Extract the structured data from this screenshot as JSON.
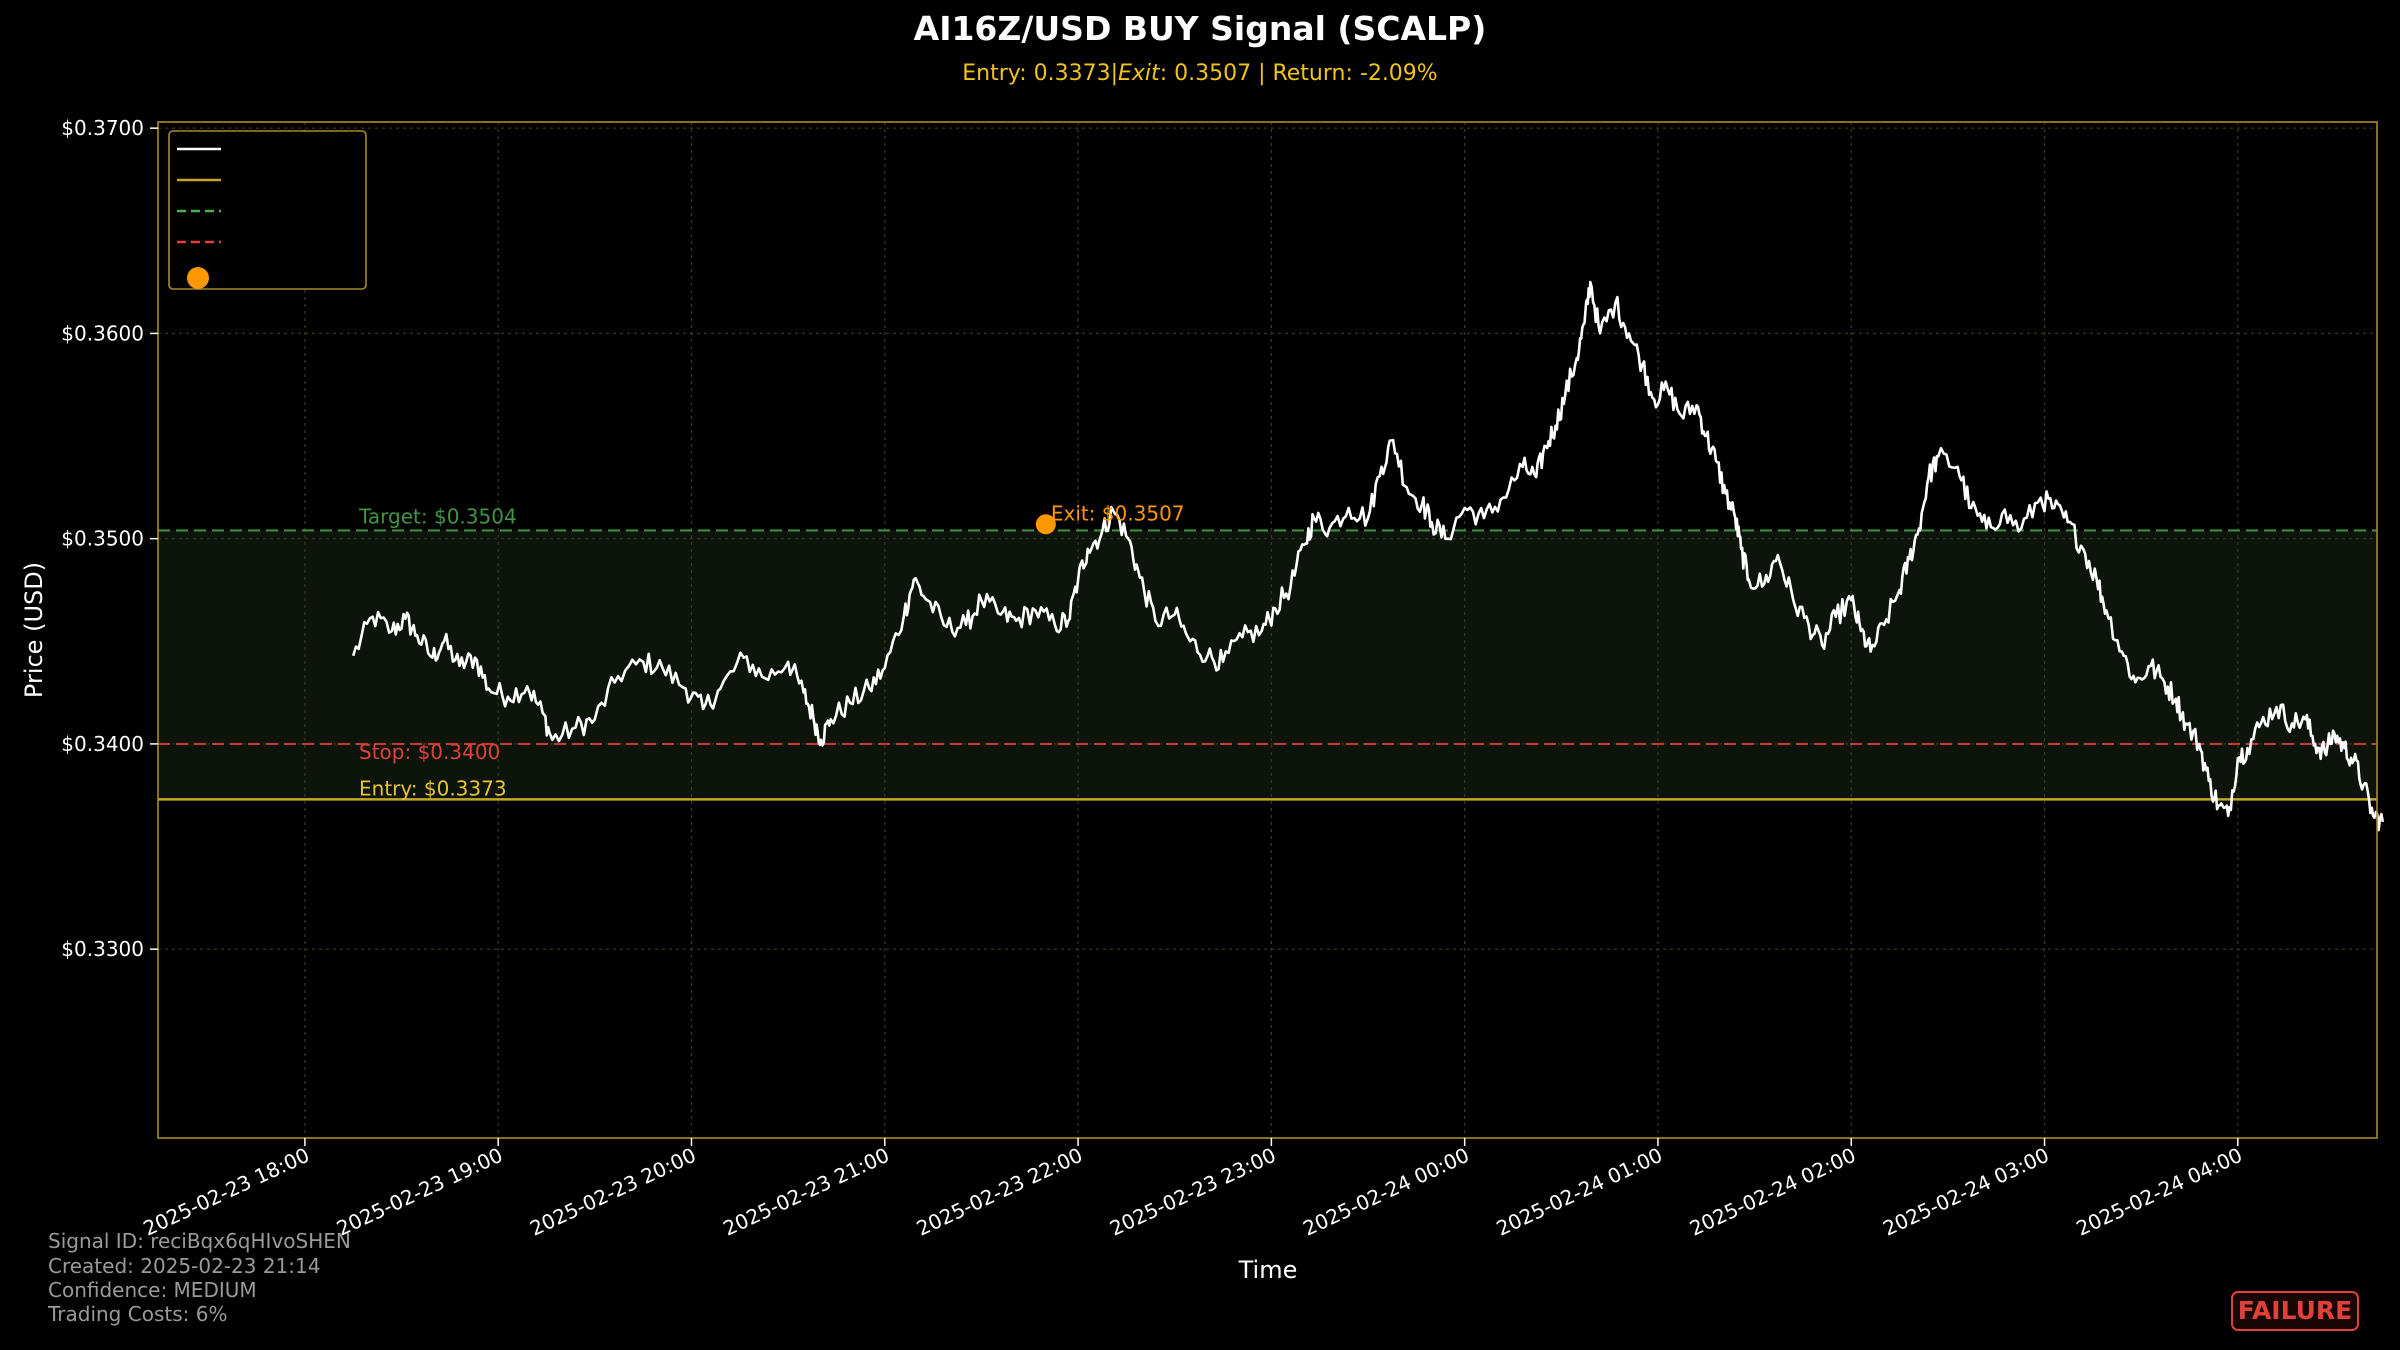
{
  "chart_data": {
    "type": "line",
    "title": "AI16Z/USD BUY Signal (SCALP)",
    "subtitle": {
      "entry_part": "Entry: 0.3373",
      "separator": "|",
      "exit_word": "Exit",
      "exit_rest": ": 0.3507 | Return: -2.09%"
    },
    "xlabel": "Time",
    "ylabel": "Price (USD)",
    "ylim": [
      0.3208,
      0.3703
    ],
    "xlim_hours": [
      -0.76,
      10.72
    ],
    "x_ticks": [
      "2025-02-23 18:00",
      "2025-02-23 19:00",
      "2025-02-23 20:00",
      "2025-02-23 21:00",
      "2025-02-23 22:00",
      "2025-02-23 23:00",
      "2025-02-24 00:00",
      "2025-02-24 01:00",
      "2025-02-24 02:00",
      "2025-02-24 03:00",
      "2025-02-24 04:00"
    ],
    "y_ticks": [
      0.33,
      0.34,
      0.35,
      0.36,
      0.37
    ],
    "y_tick_labels": [
      "$0.3300",
      "$0.3400",
      "$0.3500",
      "$0.3600",
      "$0.3700"
    ],
    "grid": true,
    "legend_position": "top-left",
    "legend_entries": [
      {
        "style": "line",
        "color": "#ffffff",
        "label": ""
      },
      {
        "style": "line",
        "color": "#c9a227",
        "label": ""
      },
      {
        "style": "dashed",
        "color": "#4caf50",
        "label": ""
      },
      {
        "style": "dashed",
        "color": "#e0413a",
        "label": ""
      },
      {
        "style": "dot",
        "color": "#ff9800",
        "label": ""
      }
    ],
    "levels": {
      "target": {
        "value": 0.3504,
        "label": "Target: $0.3504",
        "color": "#4caf50"
      },
      "stop": {
        "value": 0.34,
        "label": "Stop: $0.3400",
        "color": "#e0413a"
      },
      "entry": {
        "value": 0.3373,
        "label": "Entry: $0.3373",
        "color": "#e6c430"
      }
    },
    "exit_point": {
      "time": "2025-02-23 21:50",
      "value": 0.3507,
      "label": "Exit: $0.3507",
      "color": "#ff9800"
    },
    "series": [
      {
        "start": "2025-02-23 18:15",
        "end": "2025-02-24 03:45",
        "color": "#ffffff",
        "keypoints": [
          [
            0.25,
            0.3443
          ],
          [
            0.35,
            0.3462
          ],
          [
            0.45,
            0.3455
          ],
          [
            0.52,
            0.3461
          ],
          [
            0.58,
            0.3453
          ],
          [
            0.66,
            0.3442
          ],
          [
            0.72,
            0.345
          ],
          [
            0.8,
            0.3438
          ],
          [
            0.88,
            0.3442
          ],
          [
            0.95,
            0.3427
          ],
          [
            1.05,
            0.3423
          ],
          [
            1.15,
            0.3428
          ],
          [
            1.23,
            0.3415
          ],
          [
            1.28,
            0.3402
          ],
          [
            1.4,
            0.3408
          ],
          [
            1.5,
            0.3412
          ],
          [
            1.62,
            0.3433
          ],
          [
            1.75,
            0.344
          ],
          [
            1.85,
            0.3437
          ],
          [
            1.97,
            0.3427
          ],
          [
            2.06,
            0.3417
          ],
          [
            2.15,
            0.3427
          ],
          [
            2.27,
            0.3442
          ],
          [
            2.38,
            0.3432
          ],
          [
            2.5,
            0.344
          ],
          [
            2.58,
            0.3425
          ],
          [
            2.63,
            0.3413
          ],
          [
            2.67,
            0.3402
          ],
          [
            2.72,
            0.3412
          ],
          [
            2.82,
            0.342
          ],
          [
            2.92,
            0.3427
          ],
          [
            3.0,
            0.3437
          ],
          [
            3.1,
            0.3463
          ],
          [
            3.15,
            0.348
          ],
          [
            3.22,
            0.347
          ],
          [
            3.32,
            0.3457
          ],
          [
            3.42,
            0.3458
          ],
          [
            3.5,
            0.347
          ],
          [
            3.6,
            0.3463
          ],
          [
            3.68,
            0.346
          ],
          [
            3.78,
            0.3465
          ],
          [
            3.88,
            0.3458
          ],
          [
            3.95,
            0.346
          ],
          [
            4.0,
            0.348
          ],
          [
            4.05,
            0.3495
          ],
          [
            4.12,
            0.3502
          ],
          [
            4.18,
            0.3514
          ],
          [
            4.26,
            0.35
          ],
          [
            4.32,
            0.3481
          ],
          [
            4.4,
            0.346
          ],
          [
            4.5,
            0.3463
          ],
          [
            4.58,
            0.345
          ],
          [
            4.67,
            0.3443
          ],
          [
            4.75,
            0.344
          ],
          [
            4.85,
            0.3452
          ],
          [
            4.95,
            0.3455
          ],
          [
            5.02,
            0.3466
          ],
          [
            5.1,
            0.3477
          ],
          [
            5.17,
            0.3497
          ],
          [
            5.22,
            0.351
          ],
          [
            5.3,
            0.3505
          ],
          [
            5.4,
            0.3515
          ],
          [
            5.5,
            0.351
          ],
          [
            5.57,
            0.3535
          ],
          [
            5.63,
            0.3548
          ],
          [
            5.7,
            0.3525
          ],
          [
            5.78,
            0.3517
          ],
          [
            5.83,
            0.3508
          ],
          [
            5.9,
            0.35
          ],
          [
            6.0,
            0.3515
          ],
          [
            6.1,
            0.351
          ],
          [
            6.2,
            0.352
          ],
          [
            6.3,
            0.3535
          ],
          [
            6.37,
            0.353
          ],
          [
            6.42,
            0.3545
          ],
          [
            6.47,
            0.3555
          ],
          [
            6.52,
            0.357
          ],
          [
            6.58,
            0.3588
          ],
          [
            6.62,
            0.3605
          ],
          [
            6.65,
            0.3625
          ],
          [
            6.7,
            0.36
          ],
          [
            6.78,
            0.3615
          ],
          [
            6.85,
            0.36
          ],
          [
            6.92,
            0.3585
          ],
          [
            6.98,
            0.3568
          ],
          [
            7.05,
            0.3573
          ],
          [
            7.12,
            0.356
          ],
          [
            7.2,
            0.3565
          ],
          [
            7.25,
            0.355
          ],
          [
            7.3,
            0.3538
          ],
          [
            7.35,
            0.3522
          ],
          [
            7.4,
            0.351
          ],
          [
            7.43,
            0.3495
          ],
          [
            7.47,
            0.348
          ],
          [
            7.55,
            0.3478
          ],
          [
            7.62,
            0.3492
          ],
          [
            7.7,
            0.347
          ],
          [
            7.78,
            0.3458
          ],
          [
            7.85,
            0.3448
          ],
          [
            7.92,
            0.3462
          ],
          [
            8.0,
            0.347
          ],
          [
            8.05,
            0.3455
          ],
          [
            8.1,
            0.3445
          ],
          [
            8.17,
            0.3458
          ],
          [
            8.25,
            0.3475
          ],
          [
            8.3,
            0.349
          ],
          [
            8.35,
            0.3505
          ],
          [
            8.4,
            0.353
          ],
          [
            8.45,
            0.354
          ],
          [
            8.55,
            0.3535
          ],
          [
            8.62,
            0.3515
          ],
          [
            8.7,
            0.3505
          ],
          [
            8.78,
            0.3512
          ],
          [
            8.88,
            0.3505
          ],
          [
            8.98,
            0.352
          ],
          [
            9.05,
            0.3515
          ],
          [
            9.12,
            0.3508
          ],
          [
            9.2,
            0.3495
          ],
          [
            9.27,
            0.348
          ],
          [
            9.32,
            0.3465
          ],
          [
            9.4,
            0.3445
          ],
          [
            9.47,
            0.343
          ],
          [
            9.55,
            0.3438
          ],
          [
            9.62,
            0.343
          ],
          [
            9.68,
            0.3422
          ],
          [
            9.73,
            0.341
          ],
          [
            9.8,
            0.34
          ],
          [
            9.85,
            0.3382
          ],
          [
            9.9,
            0.337
          ],
          [
            9.95,
            0.3365
          ],
          [
            10.0,
            0.3393
          ],
          [
            10.05,
            0.3398
          ],
          [
            10.12,
            0.341
          ],
          [
            10.2,
            0.3418
          ],
          [
            10.28,
            0.341
          ],
          [
            10.35,
            0.3412
          ],
          [
            10.4,
            0.34
          ],
          [
            10.45,
            0.3396
          ],
          [
            10.5,
            0.3405
          ],
          [
            10.55,
            0.3398
          ],
          [
            10.6,
            0.3392
          ],
          [
            10.65,
            0.338
          ],
          [
            10.7,
            0.3365
          ],
          [
            10.75,
            0.3362
          ]
        ]
      }
    ]
  },
  "footer": {
    "signal_id": "Signal ID: reciBqx6qHIvoSHEN",
    "created": "Created: 2025-02-23 21:14",
    "confidence": "Confidence: MEDIUM",
    "trading_costs": "Trading Costs: 6%"
  },
  "badge": {
    "label": "FAILURE",
    "color": "#e0413a"
  },
  "colors": {
    "background": "#000000",
    "plot_border": "#a88a2a",
    "grid": "#3a3a18",
    "price_line": "#ffffff",
    "zone_fill": "#0c140c",
    "subtitle": "#f0c419"
  }
}
